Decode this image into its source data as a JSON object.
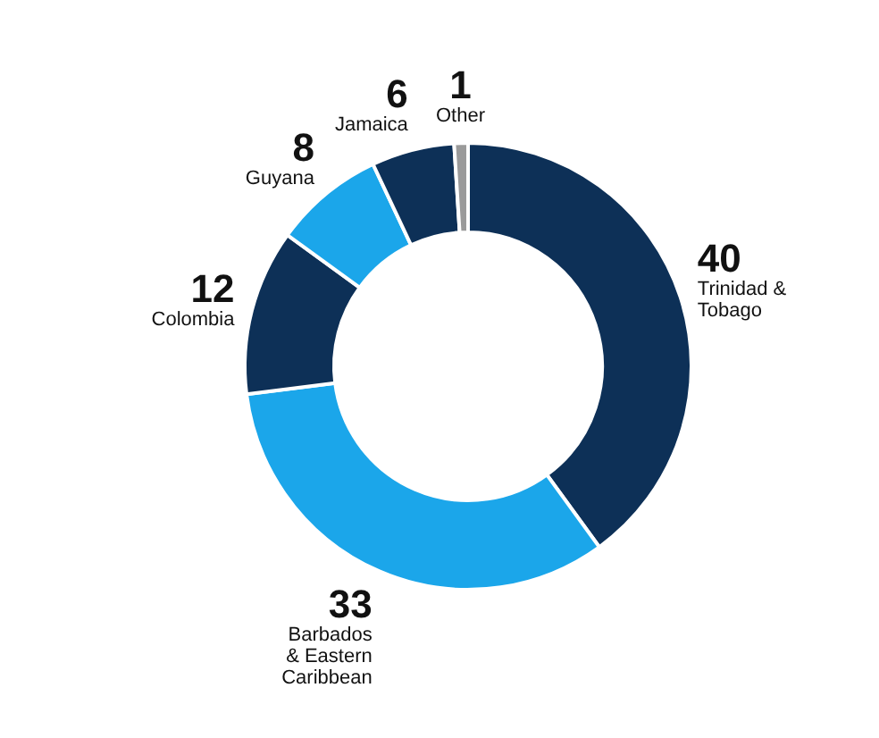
{
  "chart_data": {
    "type": "donut",
    "categories": [
      "Trinidad & Tobago",
      "Barbados & Eastern Caribbean",
      "Colombia",
      "Guyana",
      "Jamaica",
      "Other"
    ],
    "values": [
      40,
      33,
      12,
      8,
      6,
      1
    ],
    "colors": [
      "#0d3057",
      "#1ba6ea",
      "#0d3057",
      "#1ba6ea",
      "#0d3057",
      "#9a9a9a"
    ],
    "data_labels": true
  }
}
